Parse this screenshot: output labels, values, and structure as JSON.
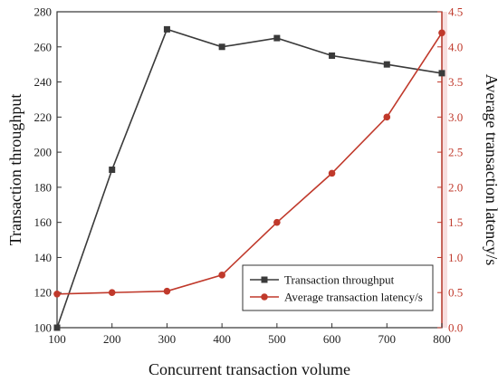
{
  "chart_data": {
    "type": "line",
    "x": [
      100,
      200,
      300,
      400,
      500,
      600,
      700,
      800
    ],
    "xlabel": "Concurrent transaction volume",
    "xlim": [
      100,
      800
    ],
    "xticks": [
      "100",
      "200",
      "300",
      "400",
      "500",
      "600",
      "700",
      "800"
    ],
    "y_left": {
      "label": "Transaction throughput",
      "lim": [
        100,
        280
      ],
      "ticks": [
        "100",
        "120",
        "140",
        "160",
        "180",
        "200",
        "220",
        "240",
        "260",
        "280"
      ],
      "color": "#333333"
    },
    "y_right": {
      "label": "Average transaction latency/s",
      "lim": [
        0,
        4.5
      ],
      "ticks": [
        "0.0",
        "0.5",
        "1.0",
        "1.5",
        "2.0",
        "2.5",
        "3.0",
        "3.5",
        "4.0",
        "4.5"
      ],
      "color": "#c0392b"
    },
    "series": [
      {
        "name": "Transaction throughput",
        "axis": "left",
        "marker": "square",
        "color": "#3a3a3a",
        "values": [
          100,
          190,
          270,
          260,
          265,
          255,
          250,
          245
        ]
      },
      {
        "name": "Average transaction latency/s",
        "axis": "right",
        "marker": "circle",
        "color": "#c0392b",
        "values": [
          0.48,
          0.5,
          0.52,
          0.75,
          1.5,
          2.2,
          3.0,
          4.2
        ]
      }
    ],
    "legend_position": "bottom-right",
    "grid": false
  }
}
